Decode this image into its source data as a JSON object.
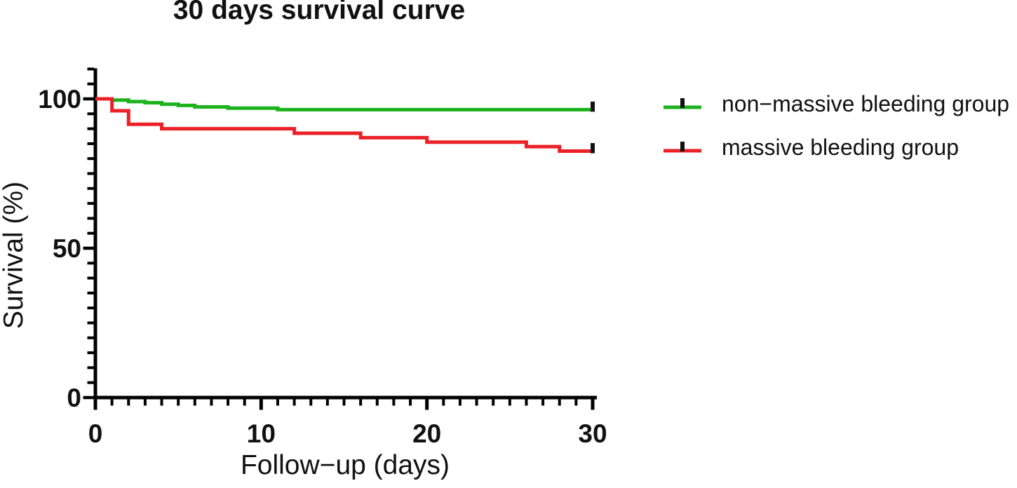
{
  "page": {
    "background": "#ffffff",
    "text_color": "#111111",
    "axis_color": "#000000"
  },
  "chart_data": {
    "type": "line",
    "subtype": "kaplan-meier-step-survival",
    "title": "30 days survival curve",
    "xlabel": "Follow−up (days)",
    "ylabel": "Survival (%)",
    "xlim": [
      0,
      30
    ],
    "ylim": [
      0,
      110
    ],
    "x_major_ticks": [
      0,
      10,
      20,
      30
    ],
    "x_minor_tick_interval": 1,
    "y_major_ticks": [
      0,
      50,
      100
    ],
    "y_minor_tick_interval": 5,
    "grid": false,
    "legend_position": "right",
    "series": [
      {
        "name": "non−massive bleeding group",
        "color": "#1CB21C",
        "steps": [
          [
            0,
            100
          ],
          [
            1,
            99.6
          ],
          [
            2,
            99.1
          ],
          [
            3,
            98.7
          ],
          [
            4,
            98.2
          ],
          [
            5,
            97.8
          ],
          [
            6,
            97.3
          ],
          [
            8,
            96.9
          ],
          [
            11,
            96.4
          ],
          [
            30,
            96.4
          ]
        ],
        "censor_marks_x": [
          30
        ]
      },
      {
        "name": "massive bleeding group",
        "color": "#EC2027",
        "steps": [
          [
            0,
            100
          ],
          [
            1,
            96.0
          ],
          [
            2,
            91.5
          ],
          [
            4,
            90.0
          ],
          [
            12,
            88.5
          ],
          [
            16,
            87.0
          ],
          [
            20,
            85.5
          ],
          [
            26,
            84.0
          ],
          [
            28,
            82.5
          ],
          [
            30,
            82.5
          ]
        ],
        "censor_marks_x": [
          30
        ]
      }
    ]
  }
}
